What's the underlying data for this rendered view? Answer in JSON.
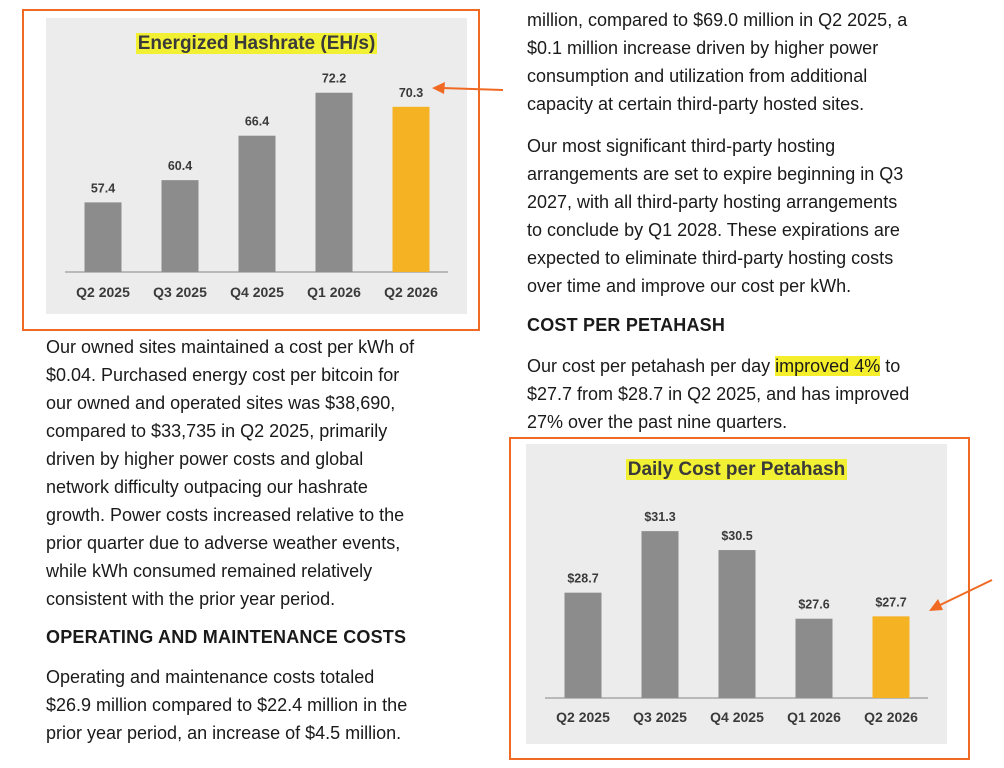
{
  "colors": {
    "bar_default": "#8c8c8c",
    "bar_highlight": "#f5b324",
    "frame": "#f06a24",
    "highlight": "#f5ee2a",
    "panel": "#ececec"
  },
  "right_column": {
    "intro": [
      "million, compared to $69.0 million in Q2 2025, a",
      "$0.1 million increase driven by higher power",
      "consumption and utilization from additional",
      "capacity at certain third-party hosted sites."
    ],
    "hosting": [
      "Our most significant third-party hosting",
      "arrangements are set to expire beginning in Q3",
      "2027, with all third-party hosting arrangements",
      "to conclude by Q1 2028. These expirations are",
      "expected to eliminate third-party hosting costs",
      "over time and improve our cost per kWh."
    ],
    "cost_heading": "COST PER PETAHASH",
    "cost_line1_before": "Our cost per petahash per day ",
    "cost_line1_highlight": "improved 4%",
    "cost_line1_after": " to",
    "cost_rest": [
      "$27.7 from $28.7 in Q2 2025, and has improved",
      "27% over the past nine quarters."
    ]
  },
  "left_column": {
    "energy": [
      "Our owned sites maintained a cost per kWh of",
      "$0.04. Purchased energy cost per bitcoin for",
      "our owned and operated sites was $38,690,",
      "compared to $33,735 in Q2 2025, primarily",
      "driven by higher power costs and global",
      "network difficulty outpacing our hashrate",
      "growth. Power costs increased relative to the",
      "prior quarter due to adverse weather events,",
      "while kWh consumed remained relatively",
      "consistent with the prior year period."
    ],
    "om_heading": "OPERATING AND MAINTENANCE COSTS",
    "om": [
      "Operating and maintenance costs totaled",
      "$26.9 million compared to $22.4 million in the",
      "prior year period, an increase of $4.5 million."
    ]
  },
  "chart_data": [
    {
      "type": "bar",
      "title": "Energized Hashrate (EH/s)",
      "categories": [
        "Q2 2025",
        "Q3 2025",
        "Q4 2025",
        "Q1 2026",
        "Q2 2026"
      ],
      "values": [
        57.4,
        60.4,
        66.4,
        72.2,
        70.3
      ],
      "labels": [
        "57.4",
        "60.4",
        "66.4",
        "72.2",
        "70.3"
      ],
      "highlight_index": 4,
      "ylim": [
        48,
        75
      ]
    },
    {
      "type": "bar",
      "title": "Daily Cost per Petahash",
      "categories": [
        "Q2 2025",
        "Q3 2025",
        "Q4 2025",
        "Q1 2026",
        "Q2 2026"
      ],
      "values": [
        28.7,
        31.3,
        30.5,
        27.6,
        27.7
      ],
      "labels": [
        "$28.7",
        "$31.3",
        "$30.5",
        "$27.6",
        "$27.7"
      ],
      "highlight_index": 4,
      "ylim": [
        24.25,
        32.7
      ]
    }
  ]
}
